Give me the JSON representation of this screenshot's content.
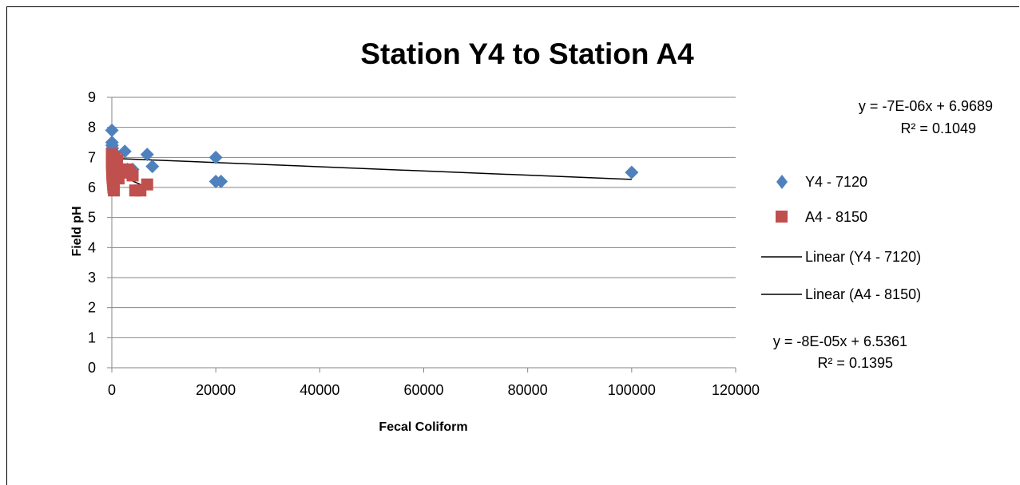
{
  "chart_data": {
    "type": "scatter",
    "title": "Station Y4 to Station A4",
    "xlabel": "Fecal Coliform",
    "ylabel": "Field pH",
    "xlim": [
      0,
      120000
    ],
    "ylim": [
      0,
      9
    ],
    "x_ticks": [
      "0",
      "20000",
      "40000",
      "60000",
      "80000",
      "100000",
      "120000"
    ],
    "y_ticks": [
      "0",
      "1",
      "2",
      "3",
      "4",
      "5",
      "6",
      "7",
      "8",
      "9"
    ],
    "grid": "horizontal",
    "legend_position": "right",
    "series": [
      {
        "name": "Y4 - 7120",
        "marker": "diamond",
        "color": "#4F81BD",
        "points": [
          [
            10,
            7.9
          ],
          [
            30,
            7.5
          ],
          [
            50,
            7.4
          ],
          [
            100,
            7.3
          ],
          [
            200,
            7.2
          ],
          [
            300,
            7.0
          ],
          [
            500,
            6.9
          ],
          [
            700,
            6.8
          ],
          [
            900,
            6.7
          ],
          [
            1200,
            6.7
          ],
          [
            1500,
            6.6
          ],
          [
            2000,
            6.6
          ],
          [
            2500,
            7.2
          ],
          [
            3000,
            6.6
          ],
          [
            3500,
            6.5
          ],
          [
            4000,
            6.6
          ],
          [
            6800,
            7.1
          ],
          [
            7800,
            6.7
          ],
          [
            20000,
            7.0
          ],
          [
            20000,
            6.2
          ],
          [
            21000,
            6.2
          ],
          [
            100000,
            6.5
          ]
        ]
      },
      {
        "name": "A4 - 8150",
        "marker": "square",
        "color": "#C0504D",
        "points": [
          [
            10,
            7.1
          ],
          [
            20,
            6.9
          ],
          [
            30,
            6.8
          ],
          [
            40,
            6.7
          ],
          [
            60,
            6.6
          ],
          [
            80,
            6.5
          ],
          [
            100,
            6.4
          ],
          [
            150,
            6.3
          ],
          [
            200,
            6.2
          ],
          [
            250,
            6.1
          ],
          [
            300,
            6.0
          ],
          [
            400,
            5.9
          ],
          [
            500,
            7.0
          ],
          [
            700,
            6.6
          ],
          [
            1000,
            6.9
          ],
          [
            1300,
            6.3
          ],
          [
            1600,
            6.6
          ],
          [
            2000,
            6.5
          ],
          [
            3000,
            6.6
          ],
          [
            3500,
            6.5
          ],
          [
            4000,
            6.4
          ],
          [
            4500,
            5.9
          ],
          [
            5500,
            5.9
          ],
          [
            6800,
            6.1
          ]
        ]
      }
    ],
    "trendlines": [
      {
        "name": "Linear (Y4 - 7120)",
        "color": "#000000",
        "slope": -7e-06,
        "intercept": 6.9689,
        "x_range": [
          0,
          100000
        ],
        "equation": "y = -7E-06x + 6.9689",
        "r2": "R² = 0.1049"
      },
      {
        "name": "Linear (A4 - 8150)",
        "color": "#000000",
        "slope": -8e-05,
        "intercept": 6.5361,
        "x_range": [
          0,
          6800
        ],
        "equation": "y = -8E-05x + 6.5361",
        "r2": "R² = 0.1395"
      }
    ]
  }
}
